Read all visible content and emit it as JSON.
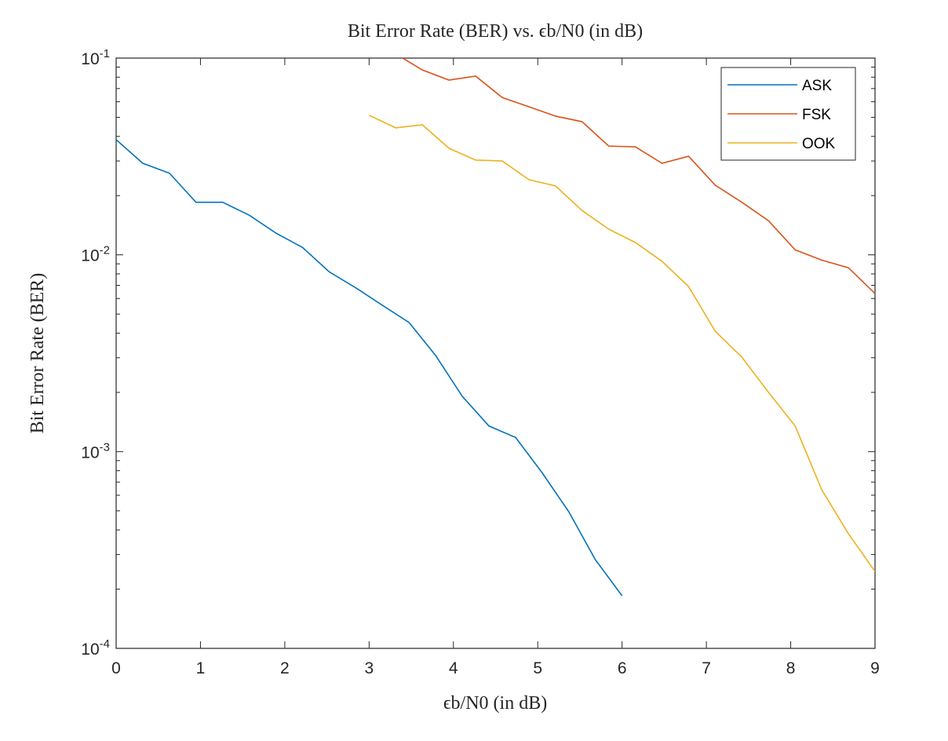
{
  "chart_data": {
    "type": "line",
    "title": "Bit Error Rate (BER) vs. ϵb/N0 (in dB)",
    "xlabel": "ϵb/N0 (in dB)",
    "ylabel": "Bit Error Rate (BER)",
    "xlim": [
      0,
      9
    ],
    "ylim": [
      0.0001,
      0.1
    ],
    "yscale": "log",
    "grid": false,
    "legend_position": "top-right",
    "xticks": [
      "0",
      "1",
      "2",
      "3",
      "4",
      "5",
      "6",
      "7",
      "8",
      "9"
    ],
    "yticks": [
      {
        "base": "10",
        "exp": "-4"
      },
      {
        "base": "10",
        "exp": "-3"
      },
      {
        "base": "10",
        "exp": "-2"
      },
      {
        "base": "10",
        "exp": "-1"
      }
    ],
    "series": [
      {
        "name": "ASK",
        "color": "#0072BD",
        "x": [
          0,
          0.316,
          0.632,
          0.947,
          1.263,
          1.579,
          1.895,
          2.211,
          2.526,
          2.842,
          3.158,
          3.474,
          3.789,
          4.105,
          4.421,
          4.737,
          5.053,
          5.368,
          5.684,
          6.0
        ],
        "y": [
          0.0385,
          0.0292,
          0.026,
          0.0185,
          0.0185,
          0.0159,
          0.0129,
          0.0109,
          0.0082,
          0.0068,
          0.00554,
          0.00453,
          0.00308,
          0.00191,
          0.00135,
          0.00118,
          0.00078,
          0.000495,
          0.000282,
          0.000185
        ]
      },
      {
        "name": "FSK",
        "color": "#D95319",
        "x": [
          3.0,
          3.316,
          3.632,
          3.947,
          4.263,
          4.579,
          4.895,
          5.211,
          5.526,
          5.842,
          6.158,
          6.474,
          6.789,
          7.105,
          7.421,
          7.737,
          8.053,
          8.368,
          8.684,
          9.0
        ],
        "y": [
          0.11,
          0.105,
          0.087,
          0.0773,
          0.081,
          0.063,
          0.0566,
          0.0507,
          0.0475,
          0.0357,
          0.0354,
          0.0292,
          0.0317,
          0.0226,
          0.0185,
          0.0149,
          0.0106,
          0.0094,
          0.0086,
          0.00636
        ]
      },
      {
        "name": "OOK",
        "color": "#EDB120",
        "x": [
          3.0,
          3.316,
          3.632,
          3.947,
          4.263,
          4.579,
          4.895,
          5.211,
          5.526,
          5.842,
          6.158,
          6.474,
          6.789,
          7.105,
          7.421,
          7.737,
          8.053,
          8.368,
          8.684,
          9.0
        ],
        "y": [
          0.0512,
          0.0442,
          0.0458,
          0.0348,
          0.0303,
          0.03,
          0.0241,
          0.0224,
          0.0168,
          0.0135,
          0.01155,
          0.00927,
          0.0069,
          0.00409,
          0.00302,
          0.002,
          0.00135,
          0.00064,
          0.000383,
          0.000246
        ]
      }
    ]
  }
}
